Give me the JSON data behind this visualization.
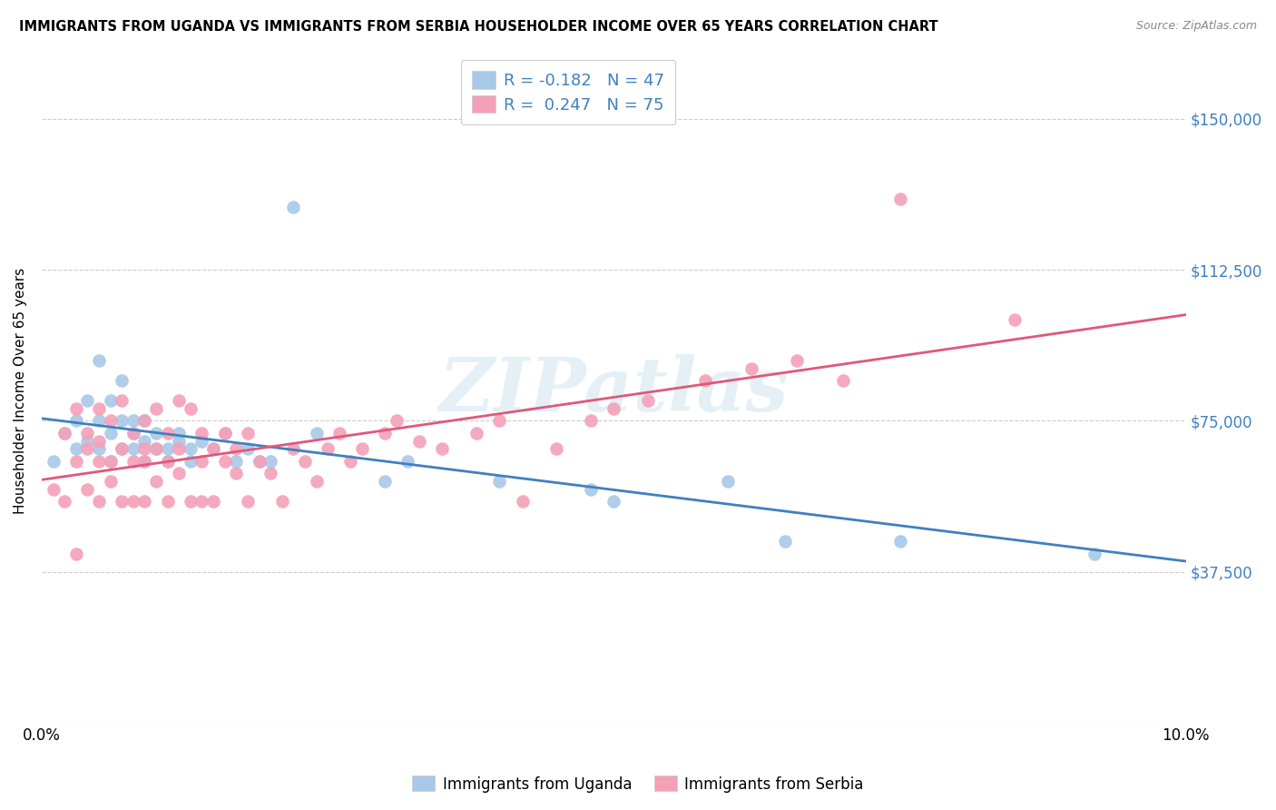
{
  "title": "IMMIGRANTS FROM UGANDA VS IMMIGRANTS FROM SERBIA HOUSEHOLDER INCOME OVER 65 YEARS CORRELATION CHART",
  "source": "Source: ZipAtlas.com",
  "ylabel": "Householder Income Over 65 years",
  "xlim": [
    0,
    0.1
  ],
  "ylim": [
    0,
    165000
  ],
  "yticks": [
    0,
    37500,
    75000,
    112500,
    150000
  ],
  "ytick_labels": [
    "",
    "$37,500",
    "$75,000",
    "$112,500",
    "$150,000"
  ],
  "xticks": [
    0.0,
    0.02,
    0.04,
    0.06,
    0.08,
    0.1
  ],
  "xtick_labels": [
    "0.0%",
    "",
    "",
    "",
    "",
    "10.0%"
  ],
  "color_uganda": "#a8c8e8",
  "color_serbia": "#f4a0b8",
  "color_uganda_line": "#4080c0",
  "color_serbia_line": "#e05878",
  "watermark_text": "ZIPatlas",
  "uganda_x": [
    0.001,
    0.002,
    0.003,
    0.003,
    0.004,
    0.004,
    0.005,
    0.005,
    0.005,
    0.006,
    0.006,
    0.006,
    0.007,
    0.007,
    0.007,
    0.008,
    0.008,
    0.008,
    0.009,
    0.009,
    0.009,
    0.01,
    0.01,
    0.011,
    0.011,
    0.012,
    0.012,
    0.013,
    0.013,
    0.014,
    0.015,
    0.016,
    0.017,
    0.018,
    0.019,
    0.02,
    0.022,
    0.024,
    0.03,
    0.032,
    0.04,
    0.048,
    0.05,
    0.06,
    0.065,
    0.075,
    0.092
  ],
  "uganda_y": [
    65000,
    72000,
    68000,
    75000,
    70000,
    80000,
    90000,
    68000,
    75000,
    65000,
    72000,
    80000,
    68000,
    75000,
    85000,
    68000,
    72000,
    75000,
    65000,
    70000,
    75000,
    68000,
    72000,
    65000,
    68000,
    70000,
    72000,
    65000,
    68000,
    70000,
    68000,
    72000,
    65000,
    68000,
    65000,
    65000,
    128000,
    72000,
    60000,
    65000,
    60000,
    58000,
    55000,
    60000,
    45000,
    45000,
    42000
  ],
  "serbia_x": [
    0.001,
    0.002,
    0.002,
    0.003,
    0.003,
    0.003,
    0.004,
    0.004,
    0.004,
    0.005,
    0.005,
    0.005,
    0.005,
    0.006,
    0.006,
    0.006,
    0.007,
    0.007,
    0.007,
    0.008,
    0.008,
    0.008,
    0.009,
    0.009,
    0.009,
    0.009,
    0.01,
    0.01,
    0.01,
    0.011,
    0.011,
    0.011,
    0.012,
    0.012,
    0.012,
    0.013,
    0.013,
    0.014,
    0.014,
    0.014,
    0.015,
    0.015,
    0.016,
    0.016,
    0.017,
    0.017,
    0.018,
    0.018,
    0.019,
    0.02,
    0.021,
    0.022,
    0.023,
    0.024,
    0.025,
    0.026,
    0.027,
    0.028,
    0.03,
    0.031,
    0.033,
    0.035,
    0.038,
    0.04,
    0.042,
    0.045,
    0.048,
    0.05,
    0.053,
    0.058,
    0.062,
    0.066,
    0.07,
    0.075,
    0.085
  ],
  "serbia_y": [
    58000,
    72000,
    55000,
    78000,
    65000,
    42000,
    68000,
    72000,
    58000,
    78000,
    65000,
    55000,
    70000,
    75000,
    65000,
    60000,
    80000,
    68000,
    55000,
    72000,
    65000,
    55000,
    75000,
    68000,
    65000,
    55000,
    78000,
    68000,
    60000,
    72000,
    65000,
    55000,
    80000,
    68000,
    62000,
    78000,
    55000,
    72000,
    65000,
    55000,
    68000,
    55000,
    72000,
    65000,
    68000,
    62000,
    55000,
    72000,
    65000,
    62000,
    55000,
    68000,
    65000,
    60000,
    68000,
    72000,
    65000,
    68000,
    72000,
    75000,
    70000,
    68000,
    72000,
    75000,
    55000,
    68000,
    75000,
    78000,
    80000,
    85000,
    88000,
    90000,
    85000,
    130000,
    100000
  ]
}
